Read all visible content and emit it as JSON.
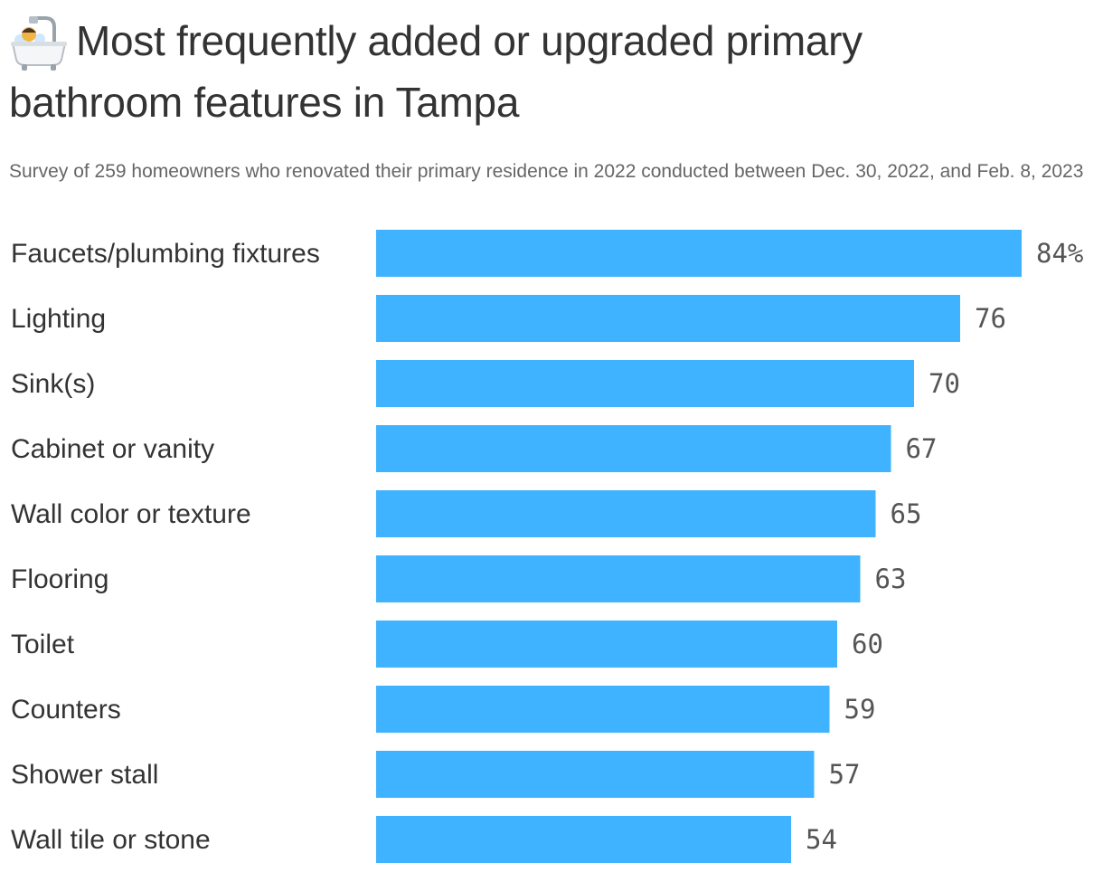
{
  "header": {
    "icon": "bathtub-icon",
    "title_line1": "Most frequently added or upgraded primary",
    "title_line2": "bathroom features in Tampa",
    "subtitle": "Survey of 259 homeowners who renovated their primary residence in 2022 conducted between Dec. 30, 2022, and Feb. 8, 2023"
  },
  "colors": {
    "bar": "#3fb3ff",
    "text": "#333333",
    "value_text": "#555555",
    "subtitle": "#666666"
  },
  "chart_data": {
    "type": "bar",
    "orientation": "horizontal",
    "categories": [
      "Faucets/plumbing fixtures",
      "Lighting",
      "Sink(s)",
      "Cabinet or vanity",
      "Wall color or texture",
      "Flooring",
      "Toilet",
      "Counters",
      "Shower stall",
      "Wall tile or stone"
    ],
    "values": [
      84,
      76,
      70,
      67,
      65,
      63,
      60,
      59,
      57,
      54
    ],
    "value_labels": [
      "84%",
      "76",
      "70",
      "67",
      "65",
      "63",
      "60",
      "59",
      "57",
      "54"
    ],
    "unit": "%",
    "xlim": [
      0,
      84
    ],
    "grid": false,
    "legend": "none"
  }
}
